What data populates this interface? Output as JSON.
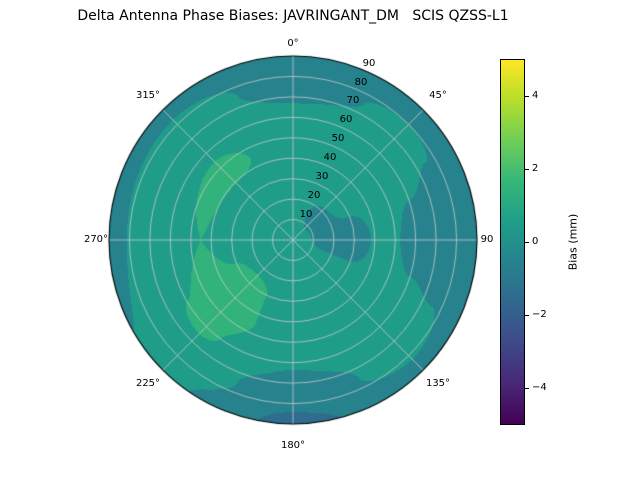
{
  "chart_data": {
    "type": "heatmap",
    "projection": "polar",
    "title": "Delta Antenna Phase Biases: JAVRINGANT_DM   SCIS QZSS-L1",
    "theta_direction": "clockwise",
    "theta_zero_location": "top",
    "theta_ticks_deg": [
      0,
      45,
      90,
      135,
      180,
      225,
      270,
      315
    ],
    "theta_tick_labels": [
      "0°",
      "45°",
      "90",
      "135°",
      "180°",
      "225°",
      "270°",
      "315°"
    ],
    "r_ticks": [
      10,
      20,
      30,
      40,
      50,
      60,
      70,
      80,
      90
    ],
    "r_tick_labels": [
      "10",
      "20",
      "30",
      "40",
      "50",
      "60",
      "70",
      "80",
      "90"
    ],
    "r_max": 90,
    "levels_step_mm": 1,
    "grid_color": "#c9c9c9",
    "colorbar": {
      "label": "Bias (mm)",
      "min": -5,
      "max": 5,
      "tick_values": [
        4,
        2,
        0,
        -2,
        -4
      ],
      "tick_labels": [
        "4",
        "2",
        "0",
        "−2",
        "−4"
      ],
      "colormap": "viridis",
      "colors": [
        "#440154",
        "#482878",
        "#3e4989",
        "#31688e",
        "#26828e",
        "#1f9e89",
        "#35b779",
        "#6ece58",
        "#b5de2b",
        "#fde725"
      ]
    },
    "grid": {
      "theta_deg": [
        0,
        45,
        90,
        135,
        180,
        225,
        270,
        315
      ],
      "r": [
        0,
        15,
        30,
        45,
        60,
        75,
        90
      ],
      "bias_mm": [
        [
          0.4,
          0.6,
          0.8,
          0.6,
          0.3,
          -0.4,
          -0.7
        ],
        [
          0.4,
          -0.3,
          0.4,
          0.7,
          0.5,
          0.2,
          -0.6
        ],
        [
          0.4,
          -0.2,
          -0.4,
          0.3,
          -0.3,
          -0.6,
          -0.8
        ],
        [
          0.4,
          0.3,
          0.5,
          0.8,
          0.6,
          0.4,
          -0.4
        ],
        [
          0.4,
          0.5,
          0.7,
          0.5,
          0.1,
          -0.6,
          -1.2
        ],
        [
          0.4,
          0.6,
          1.2,
          1.4,
          1.1,
          0.7,
          0.2
        ],
        [
          0.4,
          0.5,
          0.8,
          1.0,
          0.7,
          0.3,
          -0.5
        ],
        [
          0.4,
          0.3,
          0.6,
          1.2,
          0.9,
          0.5,
          -0.4
        ]
      ]
    }
  }
}
